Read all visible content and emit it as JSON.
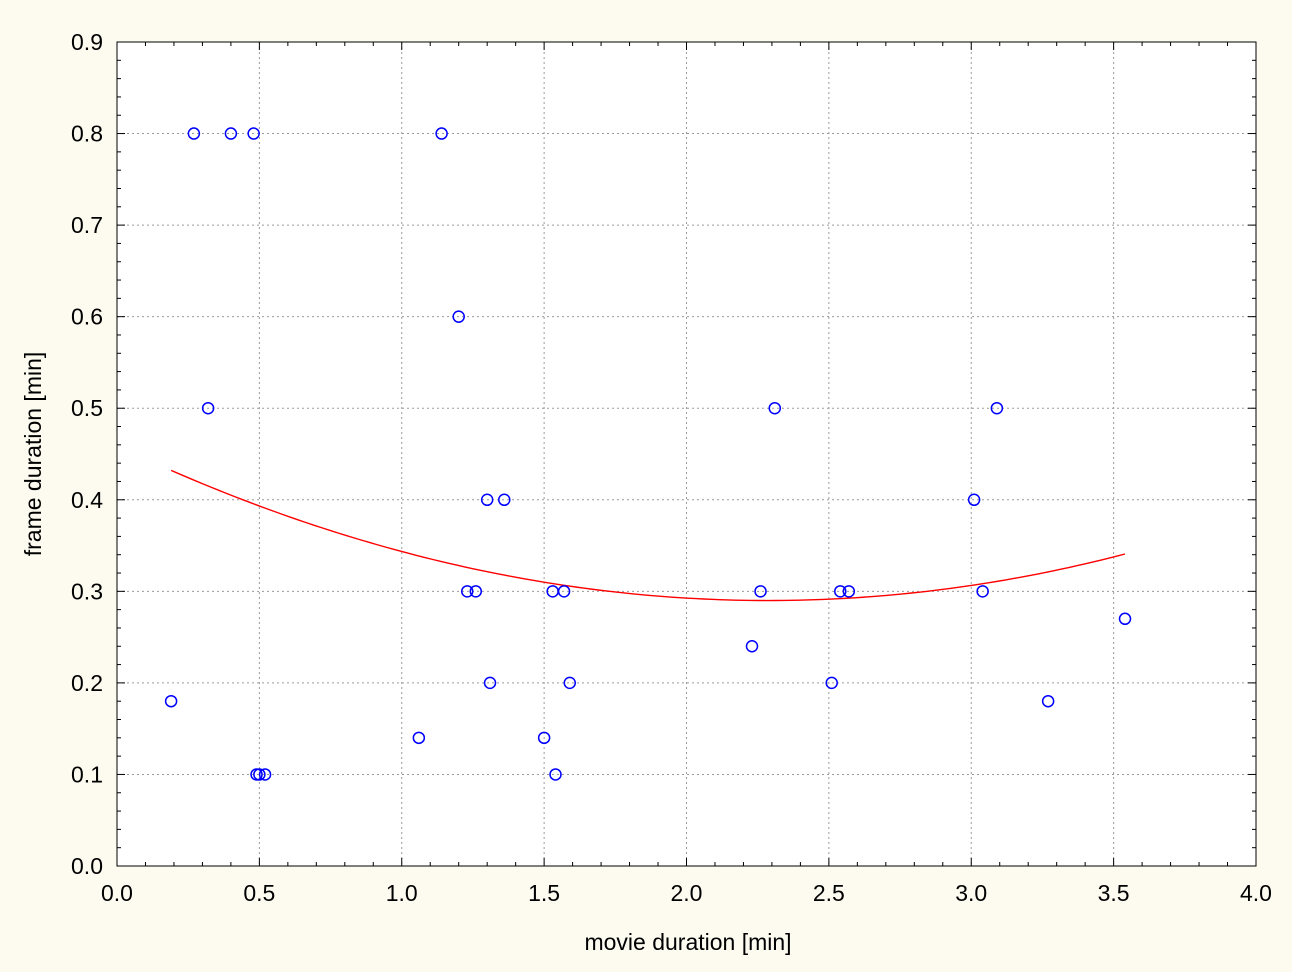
{
  "chart_data": {
    "type": "scatter",
    "title": "",
    "xlabel": "movie duration [min]",
    "ylabel": "frame duration [min]",
    "xlim": [
      0.0,
      4.0
    ],
    "ylim": [
      0.0,
      0.9
    ],
    "x_ticks": [
      "0.0",
      "0.5",
      "1.0",
      "1.5",
      "2.0",
      "2.5",
      "3.0",
      "3.5",
      "4.0"
    ],
    "y_ticks": [
      "0.0",
      "0.1",
      "0.2",
      "0.3",
      "0.4",
      "0.5",
      "0.6",
      "0.7",
      "0.8",
      "0.9"
    ],
    "x_tick_values": [
      0.0,
      0.5,
      1.0,
      1.5,
      2.0,
      2.5,
      3.0,
      3.5,
      4.0
    ],
    "y_tick_values": [
      0.0,
      0.1,
      0.2,
      0.3,
      0.4,
      0.5,
      0.6,
      0.7,
      0.8,
      0.9
    ],
    "grid": true,
    "background": "#fdfbf0",
    "series": [
      {
        "marker": "circle",
        "color": "#0000ff",
        "points": [
          {
            "x": 0.19,
            "y": 0.18
          },
          {
            "x": 0.27,
            "y": 0.8
          },
          {
            "x": 0.32,
            "y": 0.5
          },
          {
            "x": 0.4,
            "y": 0.8
          },
          {
            "x": 0.48,
            "y": 0.8
          },
          {
            "x": 0.49,
            "y": 0.1
          },
          {
            "x": 0.5,
            "y": 0.1
          },
          {
            "x": 0.52,
            "y": 0.1
          },
          {
            "x": 1.06,
            "y": 0.14
          },
          {
            "x": 1.14,
            "y": 0.8
          },
          {
            "x": 1.2,
            "y": 0.6
          },
          {
            "x": 1.23,
            "y": 0.3
          },
          {
            "x": 1.26,
            "y": 0.3
          },
          {
            "x": 1.3,
            "y": 0.4
          },
          {
            "x": 1.31,
            "y": 0.2
          },
          {
            "x": 1.36,
            "y": 0.4
          },
          {
            "x": 1.5,
            "y": 0.14
          },
          {
            "x": 1.53,
            "y": 0.3
          },
          {
            "x": 1.54,
            "y": 0.1
          },
          {
            "x": 1.57,
            "y": 0.3
          },
          {
            "x": 1.59,
            "y": 0.2
          },
          {
            "x": 2.23,
            "y": 0.24
          },
          {
            "x": 2.26,
            "y": 0.3
          },
          {
            "x": 2.31,
            "y": 0.5
          },
          {
            "x": 2.51,
            "y": 0.2
          },
          {
            "x": 2.54,
            "y": 0.3
          },
          {
            "x": 2.57,
            "y": 0.3
          },
          {
            "x": 3.01,
            "y": 0.4
          },
          {
            "x": 3.04,
            "y": 0.3
          },
          {
            "x": 3.09,
            "y": 0.5
          },
          {
            "x": 3.27,
            "y": 0.18
          },
          {
            "x": 3.54,
            "y": 0.27
          }
        ]
      }
    ],
    "fit_curve": {
      "type": "quadratic",
      "color": "#ff0000",
      "x_range": [
        0.19,
        3.54
      ],
      "points": [
        {
          "x": 0.19,
          "y": 0.432
        },
        {
          "x": 0.5,
          "y": 0.395
        },
        {
          "x": 1.0,
          "y": 0.341
        },
        {
          "x": 1.5,
          "y": 0.309
        },
        {
          "x": 2.0,
          "y": 0.294
        },
        {
          "x": 2.4,
          "y": 0.292
        },
        {
          "x": 2.8,
          "y": 0.298
        },
        {
          "x": 3.2,
          "y": 0.316
        },
        {
          "x": 3.54,
          "y": 0.341
        }
      ]
    }
  }
}
